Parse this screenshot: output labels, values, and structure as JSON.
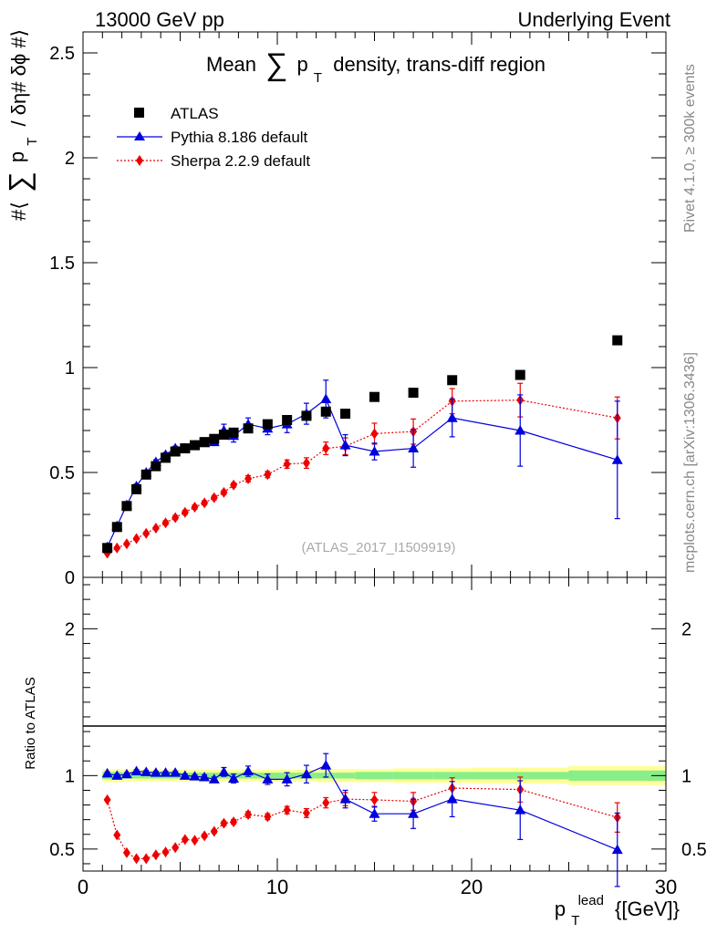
{
  "header": {
    "left": "13000 GeV pp",
    "right": "Underlying Event"
  },
  "side_labels": {
    "rivet": "Rivet 4.1.0, ≥ 300k events",
    "mcplots": "mcplots.cern.ch [arXiv:1306.3436]"
  },
  "chart_data": [
    {
      "type": "scatter",
      "panel": "main",
      "title": "Mean ∑ pT density, trans-diff region",
      "title_parts": {
        "pre": "Mean",
        "sum": "∑",
        "p": "p",
        "sub": "T",
        "post": "density, trans-diff region"
      },
      "ylabel": "#⟨ ∑ pT / δη# δϕ #⟩",
      "ylabel_parts": {
        "pre": "#⟨",
        "sum": "∑",
        "p": "p",
        "sub": "T",
        "post": "/ δη# δϕ #⟩"
      },
      "watermark": "(ATLAS_2017_I1509919)",
      "xlim": [
        0,
        30
      ],
      "ylim": [
        0,
        2.6
      ],
      "yticks": [
        0,
        0.5,
        1,
        1.5,
        2,
        2.5
      ],
      "ytick_labels": [
        "0",
        "0.5",
        "1",
        "1.5",
        "2",
        "2.5"
      ],
      "legend": [
        "ATLAS",
        "Pythia 8.186 default",
        "Sherpa 2.2.9 default"
      ],
      "series": [
        {
          "name": "ATLAS",
          "color": "#000000",
          "marker": "square",
          "x": [
            1.25,
            1.75,
            2.25,
            2.75,
            3.25,
            3.75,
            4.25,
            4.75,
            5.25,
            5.75,
            6.25,
            6.75,
            7.25,
            7.75,
            8.5,
            9.5,
            10.5,
            11.5,
            12.5,
            13.5,
            15,
            17,
            19,
            22.5,
            27.5
          ],
          "y": [
            0.14,
            0.24,
            0.34,
            0.42,
            0.49,
            0.53,
            0.57,
            0.6,
            0.615,
            0.63,
            0.645,
            0.66,
            0.68,
            0.69,
            0.71,
            0.73,
            0.75,
            0.77,
            0.79,
            0.78,
            0.86,
            0.88,
            0.94,
            0.965,
            1.13
          ],
          "err": [
            0,
            0,
            0,
            0,
            0,
            0,
            0,
            0,
            0,
            0,
            0,
            0,
            0,
            0,
            0,
            0,
            0,
            0,
            0,
            0,
            0,
            0,
            0,
            0,
            0
          ]
        },
        {
          "name": "Pythia 8.186 default",
          "color": "#0000dd",
          "marker": "triangle",
          "x": [
            1.25,
            1.75,
            2.25,
            2.75,
            3.25,
            3.75,
            4.25,
            4.75,
            5.25,
            5.75,
            6.25,
            6.75,
            7.25,
            7.75,
            8.5,
            9.5,
            10.5,
            11.5,
            12.5,
            13.5,
            15,
            17,
            19,
            22.5,
            27.5
          ],
          "y": [
            0.145,
            0.245,
            0.345,
            0.435,
            0.5,
            0.55,
            0.585,
            0.615,
            0.615,
            0.63,
            0.64,
            0.645,
            0.7,
            0.675,
            0.73,
            0.71,
            0.73,
            0.78,
            0.85,
            0.63,
            0.6,
            0.615,
            0.76,
            0.7,
            0.56
          ],
          "err": [
            0.01,
            0.01,
            0.01,
            0.01,
            0.01,
            0.01,
            0.01,
            0.01,
            0.01,
            0.01,
            0.015,
            0.015,
            0.03,
            0.03,
            0.03,
            0.03,
            0.04,
            0.05,
            0.09,
            0.05,
            0.04,
            0.09,
            0.09,
            0.17,
            0.28
          ]
        },
        {
          "name": "Sherpa 2.2.9 default",
          "color": "#ee0000",
          "marker": "diamond",
          "x": [
            1.25,
            1.75,
            2.25,
            2.75,
            3.25,
            3.75,
            4.25,
            4.75,
            5.25,
            5.75,
            6.25,
            6.75,
            7.25,
            7.75,
            8.5,
            9.5,
            10.5,
            11.5,
            12.5,
            13.5,
            15,
            17,
            19,
            22.5,
            27.5
          ],
          "y": [
            0.115,
            0.14,
            0.16,
            0.185,
            0.21,
            0.235,
            0.26,
            0.285,
            0.31,
            0.335,
            0.355,
            0.38,
            0.405,
            0.44,
            0.47,
            0.49,
            0.54,
            0.545,
            0.615,
            0.625,
            0.685,
            0.695,
            0.84,
            0.845,
            0.76
          ],
          "err": [
            0.005,
            0.005,
            0.005,
            0.005,
            0.005,
            0.005,
            0.01,
            0.01,
            0.01,
            0.01,
            0.01,
            0.01,
            0.01,
            0.01,
            0.015,
            0.015,
            0.02,
            0.025,
            0.03,
            0.04,
            0.05,
            0.06,
            0.06,
            0.08,
            0.1
          ]
        }
      ]
    },
    {
      "type": "scatter",
      "panel": "ratio",
      "ylabel": "Ratio to ATLAS",
      "xlabel": "pT lead {[GeV]}",
      "xlabel_parts": {
        "p": "p",
        "sub": "T",
        "sup": "lead",
        "post": "{[GeV]}"
      },
      "xlim": [
        0,
        30
      ],
      "ylim": [
        0.35,
        2.35
      ],
      "xticks": [
        0,
        10,
        20,
        30
      ],
      "xtick_labels": [
        "0",
        "10",
        "20",
        "30"
      ],
      "yticks": [
        0.5,
        1,
        2
      ],
      "ytick_labels": [
        "0.5",
        "1",
        "2"
      ],
      "band": {
        "edges": [
          1,
          1.5,
          2,
          2.5,
          3,
          3.5,
          4,
          4.5,
          5,
          5.5,
          6,
          6.5,
          7,
          7.5,
          8,
          9,
          10,
          11,
          12,
          13,
          14,
          16,
          18,
          20,
          25,
          30
        ],
        "inner": [
          0.025,
          0.025,
          0.02,
          0.02,
          0.02,
          0.02,
          0.02,
          0.02,
          0.02,
          0.02,
          0.02,
          0.02,
          0.02,
          0.02,
          0.02,
          0.02,
          0.02,
          0.02,
          0.02,
          0.02,
          0.025,
          0.025,
          0.025,
          0.025,
          0.035
        ],
        "outer": [
          0.045,
          0.045,
          0.04,
          0.04,
          0.04,
          0.04,
          0.04,
          0.04,
          0.04,
          0.04,
          0.04,
          0.04,
          0.04,
          0.04,
          0.04,
          0.04,
          0.04,
          0.04,
          0.045,
          0.045,
          0.045,
          0.05,
          0.05,
          0.055,
          0.065
        ],
        "inner_color": "#88ee88",
        "outer_color": "#ffff99"
      },
      "series": [
        {
          "name": "Pythia 8.186 default",
          "color": "#0000dd",
          "marker": "triangle",
          "x": [
            1.25,
            1.75,
            2.25,
            2.75,
            3.25,
            3.75,
            4.25,
            4.75,
            5.25,
            5.75,
            6.25,
            6.75,
            7.25,
            7.75,
            8.5,
            9.5,
            10.5,
            11.5,
            12.5,
            13.5,
            15,
            17,
            19,
            22.5,
            27.5
          ],
          "y": [
            1.015,
            1.0,
            1.01,
            1.03,
            1.025,
            1.02,
            1.02,
            1.02,
            1.0,
            0.995,
            0.99,
            0.975,
            1.025,
            0.98,
            1.03,
            0.975,
            0.975,
            1.01,
            1.07,
            0.84,
            0.74,
            0.74,
            0.84,
            0.765,
            0.495
          ],
          "err": [
            0.01,
            0.01,
            0.01,
            0.01,
            0.01,
            0.01,
            0.01,
            0.01,
            0.01,
            0.01,
            0.015,
            0.015,
            0.03,
            0.03,
            0.035,
            0.035,
            0.045,
            0.06,
            0.08,
            0.06,
            0.05,
            0.1,
            0.12,
            0.2,
            0.25
          ]
        },
        {
          "name": "Sherpa 2.2.9 default",
          "color": "#ee0000",
          "marker": "diamond",
          "x": [
            1.25,
            1.75,
            2.25,
            2.75,
            3.25,
            3.75,
            4.25,
            4.75,
            5.25,
            5.75,
            6.25,
            6.75,
            7.25,
            7.75,
            8.5,
            9.5,
            10.5,
            11.5,
            12.5,
            13.5,
            15,
            17,
            19,
            22.5,
            27.5
          ],
          "y": [
            0.835,
            0.595,
            0.475,
            0.435,
            0.435,
            0.46,
            0.48,
            0.51,
            0.565,
            0.56,
            0.59,
            0.62,
            0.675,
            0.685,
            0.735,
            0.72,
            0.765,
            0.745,
            0.815,
            0.84,
            0.835,
            0.825,
            0.915,
            0.905,
            0.715
          ],
          "err": [
            0.005,
            0.005,
            0.005,
            0.005,
            0.005,
            0.005,
            0.01,
            0.01,
            0.01,
            0.01,
            0.012,
            0.012,
            0.015,
            0.015,
            0.02,
            0.02,
            0.025,
            0.03,
            0.035,
            0.045,
            0.05,
            0.06,
            0.07,
            0.085,
            0.1
          ]
        }
      ]
    }
  ]
}
